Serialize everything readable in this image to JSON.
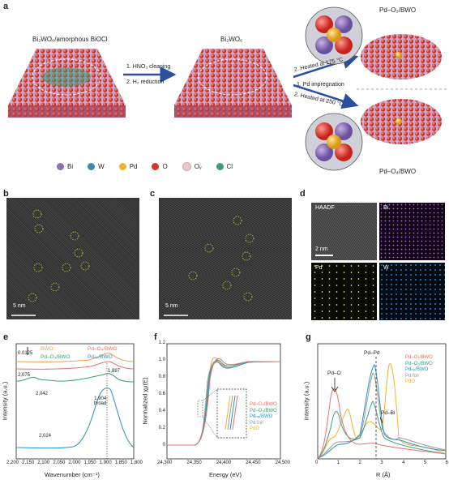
{
  "panel_labels": {
    "a": "a",
    "b": "b",
    "c": "c",
    "d": "d",
    "e": "e",
    "f": "f",
    "g": "g"
  },
  "panel_a": {
    "left_title": "Bi₂WO₆/amorphous BiOCl",
    "mid_title": "Bi₂WO₆",
    "step1": "1. HNO₃ cleaning",
    "step2": "2. H₂ reduction",
    "route_top": "2. Heated at 175 °C",
    "route_mid": "1. Pd impregnation",
    "route_bottom": "2. Heated at 250 °C",
    "product_top": "Pd–O₃/BWO",
    "product_bottom": "Pd–O₄/BWO",
    "legend": [
      {
        "label": "Bi",
        "color": "#8b6fb8"
      },
      {
        "label": "W",
        "color": "#3a8bb0"
      },
      {
        "label": "Pd",
        "color": "#f0b429"
      },
      {
        "label": "O",
        "color": "#d9342b"
      },
      {
        "label": "Oᵥ",
        "color": "#e8c9c9"
      },
      {
        "label": "Cl",
        "color": "#3b9b7c"
      }
    ]
  },
  "panel_b": {
    "scale": "5 nm"
  },
  "panel_c": {
    "scale": "5 nm"
  },
  "panel_d": {
    "tiles": [
      "HAADF",
      "Bi",
      "Pd",
      "W"
    ],
    "scale": "2 nm"
  },
  "panel_e": {
    "legend": [
      "BWO",
      "Pd–O₄/BWO",
      "Pd–O₃/BWO",
      "Pdₙₚ/BWO"
    ],
    "scale_bar": "0.0125",
    "peaks": [
      "2,075",
      "2,042",
      "1,897",
      "1,904\nbroad",
      "2,024"
    ],
    "xlabel": "Wavenumber (cm⁻¹)",
    "ylabel": "Intensity (a.u.)",
    "xticks": [
      "2,200",
      "2,150",
      "2,100",
      "2,050",
      "2,000",
      "1,950",
      "1,900",
      "1,850",
      "1,800"
    ]
  },
  "panel_f": {
    "legend": [
      "Pd–O₄/BWO",
      "Pd–O₃/BWO",
      "Pdₙₚ/BWO",
      "Pd foil",
      "PdO"
    ],
    "xlabel": "Energy (eV)",
    "ylabel": "Normalized χμ(E)",
    "xticks": [
      "24,300",
      "24,350",
      "24,400",
      "24,450",
      "24,500"
    ],
    "yticks": [
      "0",
      "0.2",
      "0.4",
      "0.6",
      "0.8",
      "1.0",
      "1.2"
    ]
  },
  "panel_g": {
    "legend": [
      "Pd–O₄/BWO",
      "Pd–O₃/BWO",
      "Pdₙₚ/BWO",
      "Pd foil",
      "PdO"
    ],
    "annotations": [
      "Pd–Pd",
      "Pd–O",
      "Pd–Bi"
    ],
    "xlabel": "R (Å)",
    "ylabel": "Intensity (a.u.)",
    "xticks": [
      "0",
      "1",
      "2",
      "3",
      "4",
      "5",
      "6"
    ]
  },
  "colors": {
    "c_bwo": "#f0a04b",
    "c_o4": "#e8736a",
    "c_o3": "#3a9e7f",
    "c_np": "#2d8fc4",
    "c_foil": "#9a9a9a",
    "c_pdo": "#f2b233"
  }
}
